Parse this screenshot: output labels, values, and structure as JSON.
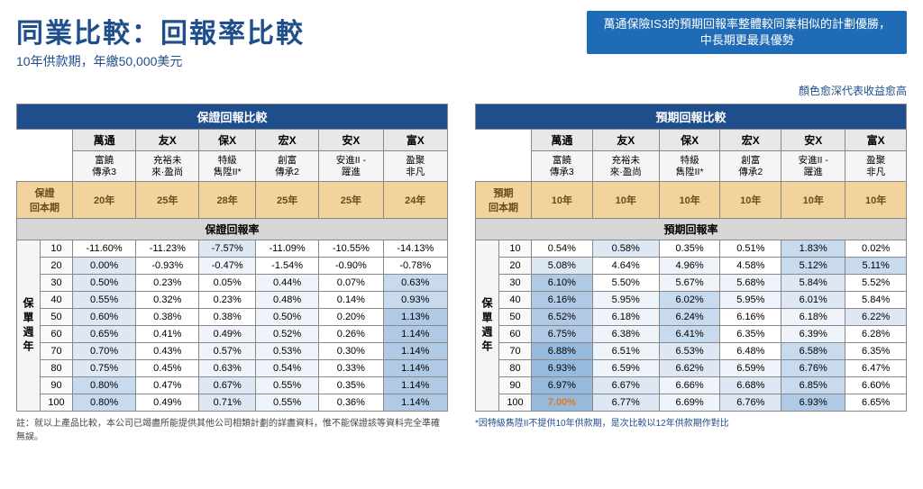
{
  "title": "同業比較：回報率比較",
  "subtitle": "10年供款期，年繳50,000美元",
  "banner_line1": "萬通保險IS3的預期回報率整體較同業相似的計劃優勝，",
  "banner_line2": "中長期更最具優勢",
  "legend": "顏色愈深代表收益愈高",
  "shade_palette": [
    "#ffffff",
    "#eff4fa",
    "#dde8f4",
    "#c8daee",
    "#b0cae6",
    "#96b9de"
  ],
  "companies": [
    "萬通",
    "友X",
    "保X",
    "宏X",
    "安X",
    "富X"
  ],
  "plans": [
    "富饒\n傳承3",
    "充裕未\n來·盈尚",
    "特級\n雋陞II*",
    "創富\n傳承2",
    "安進II -\n躍進",
    "盈聚\n非凡"
  ],
  "left": {
    "header": "保證回報比較",
    "break_label": "保證\n回本期",
    "break_values": [
      "20年",
      "25年",
      "28年",
      "25年",
      "25年",
      "24年"
    ],
    "rate_header": "保證回報率",
    "side_label": "保單週年",
    "years": [
      10,
      20,
      30,
      40,
      50,
      60,
      70,
      80,
      90,
      100
    ],
    "rows": [
      {
        "vals": [
          "-11.60%",
          "-11.23%",
          "-7.57%",
          "-11.09%",
          "-10.55%",
          "-14.13%"
        ],
        "sh": [
          0,
          0,
          2,
          0,
          0,
          0
        ]
      },
      {
        "vals": [
          "0.00%",
          "-0.93%",
          "-0.47%",
          "-1.54%",
          "-0.90%",
          "-0.78%"
        ],
        "sh": [
          2,
          0,
          1,
          0,
          0,
          0
        ]
      },
      {
        "vals": [
          "0.50%",
          "0.23%",
          "0.05%",
          "0.44%",
          "0.07%",
          "0.63%"
        ],
        "sh": [
          2,
          0,
          0,
          1,
          0,
          3
        ]
      },
      {
        "vals": [
          "0.55%",
          "0.32%",
          "0.23%",
          "0.48%",
          "0.14%",
          "0.93%"
        ],
        "sh": [
          2,
          0,
          0,
          1,
          0,
          3
        ]
      },
      {
        "vals": [
          "0.60%",
          "0.38%",
          "0.38%",
          "0.50%",
          "0.20%",
          "1.13%"
        ],
        "sh": [
          2,
          0,
          0,
          1,
          0,
          4
        ]
      },
      {
        "vals": [
          "0.65%",
          "0.41%",
          "0.49%",
          "0.52%",
          "0.26%",
          "1.14%"
        ],
        "sh": [
          2,
          0,
          1,
          1,
          0,
          4
        ]
      },
      {
        "vals": [
          "0.70%",
          "0.43%",
          "0.57%",
          "0.53%",
          "0.30%",
          "1.14%"
        ],
        "sh": [
          2,
          0,
          1,
          1,
          0,
          4
        ]
      },
      {
        "vals": [
          "0.75%",
          "0.45%",
          "0.63%",
          "0.54%",
          "0.33%",
          "1.14%"
        ],
        "sh": [
          2,
          0,
          1,
          1,
          0,
          4
        ]
      },
      {
        "vals": [
          "0.80%",
          "0.47%",
          "0.67%",
          "0.55%",
          "0.35%",
          "1.14%"
        ],
        "sh": [
          3,
          0,
          2,
          1,
          0,
          4
        ]
      },
      {
        "vals": [
          "0.80%",
          "0.49%",
          "0.71%",
          "0.55%",
          "0.36%",
          "1.14%"
        ],
        "sh": [
          3,
          0,
          2,
          1,
          0,
          4
        ]
      }
    ],
    "footnote": "註：就以上產品比較，本公司已竭盡所能提供其他公司相類計劃的詳盡資料，惟不能保證該等資料完全準確無誤。"
  },
  "right": {
    "header": "預期回報比較",
    "break_label": "預期\n回本期",
    "break_values": [
      "10年",
      "10年",
      "10年",
      "10年",
      "10年",
      "10年"
    ],
    "rate_header": "預期回報率",
    "side_label": "保單週年",
    "years": [
      10,
      20,
      30,
      40,
      50,
      60,
      70,
      80,
      90,
      100
    ],
    "rows": [
      {
        "vals": [
          "0.54%",
          "0.58%",
          "0.35%",
          "0.51%",
          "1.83%",
          "0.02%"
        ],
        "sh": [
          0,
          2,
          0,
          0,
          3,
          0
        ]
      },
      {
        "vals": [
          "5.08%",
          "4.64%",
          "4.96%",
          "4.58%",
          "5.12%",
          "5.11%"
        ],
        "sh": [
          2,
          0,
          1,
          0,
          3,
          3
        ]
      },
      {
        "vals": [
          "6.10%",
          "5.50%",
          "5.67%",
          "5.68%",
          "5.84%",
          "5.52%"
        ],
        "sh": [
          4,
          0,
          1,
          1,
          2,
          0
        ]
      },
      {
        "vals": [
          "6.16%",
          "5.95%",
          "6.02%",
          "5.95%",
          "6.01%",
          "5.84%"
        ],
        "sh": [
          4,
          1,
          3,
          1,
          2,
          0
        ]
      },
      {
        "vals": [
          "6.52%",
          "6.18%",
          "6.24%",
          "6.16%",
          "6.18%",
          "6.22%"
        ],
        "sh": [
          4,
          1,
          3,
          0,
          1,
          2
        ]
      },
      {
        "vals": [
          "6.75%",
          "6.38%",
          "6.41%",
          "6.35%",
          "6.39%",
          "6.28%"
        ],
        "sh": [
          4,
          1,
          3,
          0,
          1,
          0
        ]
      },
      {
        "vals": [
          "6.88%",
          "6.51%",
          "6.53%",
          "6.48%",
          "6.58%",
          "6.35%"
        ],
        "sh": [
          5,
          1,
          2,
          0,
          3,
          0
        ]
      },
      {
        "vals": [
          "6.93%",
          "6.59%",
          "6.62%",
          "6.59%",
          "6.76%",
          "6.47%"
        ],
        "sh": [
          5,
          1,
          2,
          1,
          3,
          0
        ]
      },
      {
        "vals": [
          "6.97%",
          "6.67%",
          "6.66%",
          "6.68%",
          "6.85%",
          "6.60%"
        ],
        "sh": [
          5,
          2,
          1,
          2,
          3,
          0
        ]
      },
      {
        "vals": [
          "7.00%",
          "6.77%",
          "6.69%",
          "6.76%",
          "6.93%",
          "6.65%"
        ],
        "sh": [
          5,
          2,
          1,
          2,
          4,
          0
        ],
        "hl": [
          true,
          false,
          false,
          false,
          false,
          false
        ]
      }
    ],
    "footnote": "*因特級雋陞II不提供10年供款期，是次比較以12年供款期作對比"
  }
}
